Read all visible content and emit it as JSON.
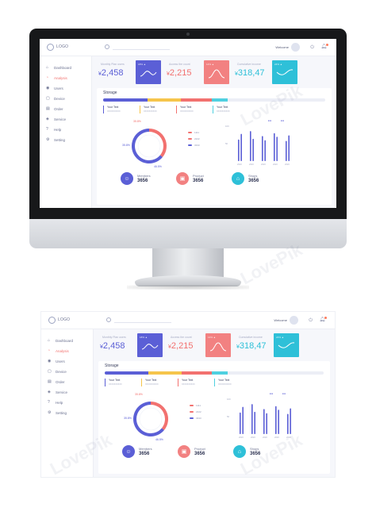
{
  "app": {
    "logo_text": "LOGO",
    "search_placeholder": "",
    "welcome_text": "Welcome",
    "watermark": "LovePik"
  },
  "sidebar": {
    "items": [
      {
        "label": "Dashboard",
        "icon": "home-icon",
        "glyph": "⌂",
        "active": false
      },
      {
        "label": "Analysis",
        "icon": "chart-icon",
        "glyph": "◔",
        "active": true
      },
      {
        "label": "Users",
        "icon": "user-icon",
        "glyph": "◉",
        "active": false
      },
      {
        "label": "Device",
        "icon": "device-icon",
        "glyph": "▢",
        "active": false
      },
      {
        "label": "Order",
        "icon": "order-icon",
        "glyph": "▤",
        "active": false
      },
      {
        "label": "Service",
        "icon": "service-icon",
        "glyph": "◈",
        "active": false
      },
      {
        "label": "Help",
        "icon": "help-icon",
        "glyph": "?",
        "active": false
      },
      {
        "label": "Setting",
        "icon": "gear-icon",
        "glyph": "⚙",
        "active": false
      }
    ]
  },
  "stats": [
    {
      "label": "Monthly Plan users",
      "value": "2,458",
      "currency": "¥",
      "color": "#5b5fd6",
      "spark_text": "18% ▲",
      "spark_color": "#5b5fd6"
    },
    {
      "label": "Access the count",
      "value": "2,215",
      "currency": "¥",
      "color": "#f2716f",
      "spark_text": "14% ▲",
      "spark_color": "#f28181"
    },
    {
      "label": "Cumulative income",
      "value": "318,47",
      "currency": "¥",
      "color": "#2ec0d8",
      "spark_text": "24% ▲",
      "spark_color": "#2ec0d8"
    }
  ],
  "storage": {
    "title": "Storage",
    "segments": [
      {
        "fraction": 0.2,
        "color": "#5b5fd6"
      },
      {
        "fraction": 0.15,
        "color": "#f6c54b"
      },
      {
        "fraction": 0.14,
        "color": "#f2716f"
      },
      {
        "fraction": 0.07,
        "color": "#4fd0e0"
      }
    ],
    "legend": [
      {
        "title": "Your Text",
        "sub": "XXXXXXXXXX",
        "color": "#5b5fd6"
      },
      {
        "title": "Your Text",
        "sub": "XXXXXXXXXX",
        "color": "#f6c54b"
      },
      {
        "title": "Your Text",
        "sub": "XXXXXXXXXX",
        "color": "#f2716f"
      },
      {
        "title": "Your Text",
        "sub": "XXXXXXXXXX",
        "color": "#4fd0e0"
      }
    ]
  },
  "donut": {
    "labels": [
      {
        "text": "35.8%",
        "color": "#f2716f"
      },
      {
        "text": "35.8%",
        "color": "#5b5fd6"
      },
      {
        "text": "46.5%",
        "color": "#5b5fd6"
      }
    ],
    "segments": [
      {
        "fraction": 0.36,
        "color": "#f2716f"
      },
      {
        "fraction": 0.64,
        "color": "#5b5fd6"
      }
    ],
    "legend": [
      {
        "text": "1111",
        "color": "#f2716f"
      },
      {
        "text": "2222",
        "color": "#f2716f"
      },
      {
        "text": "3333",
        "color": "#5b5fd6"
      }
    ]
  },
  "bar_chart": {
    "y_ticks": [
      "100",
      "50"
    ],
    "legend": [
      {
        "text": "■ ■",
        "color": "#5b5fd6"
      },
      {
        "text": "■ ■",
        "color": "#5b5fd6"
      }
    ],
    "groups": [
      {
        "label": "2020",
        "values": [
          62,
          78
        ]
      },
      {
        "label": "2020",
        "values": [
          86,
          64
        ]
      },
      {
        "label": "2020",
        "values": [
          72,
          60
        ]
      },
      {
        "label": "2020",
        "values": [
          80,
          70
        ]
      },
      {
        "label": "2020",
        "values": [
          58,
          74
        ]
      }
    ],
    "color": "#5b5fd6",
    "y_max": 100
  },
  "summary": [
    {
      "label": "Members",
      "value": "3656",
      "icon": "members-icon",
      "glyph": "☺",
      "color": "#5b5fd6"
    },
    {
      "label": "Product",
      "value": "3656",
      "icon": "product-icon",
      "glyph": "▣",
      "color": "#f28181"
    },
    {
      "label": "Shops",
      "value": "3656",
      "icon": "shop-icon",
      "glyph": "⌂",
      "color": "#2ec0d8"
    }
  ]
}
